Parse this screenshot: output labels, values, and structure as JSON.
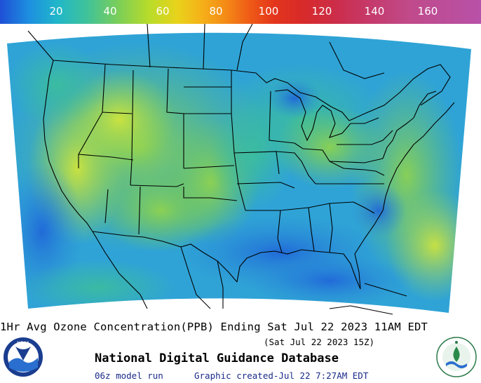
{
  "colorbar": {
    "ticks": [
      "20",
      "40",
      "60",
      "80",
      "100",
      "120",
      "140",
      "160"
    ],
    "colors": [
      "#1e4fd6",
      "#21b7c9",
      "#7fcf55",
      "#e9d21b",
      "#f48a16",
      "#e4351c",
      "#cc2d4a",
      "#b851a8"
    ]
  },
  "map": {
    "dominant_colors": [
      "#2fa6d8",
      "#3cbf9a",
      "#8cd34a",
      "#c8e23a",
      "#2370d6"
    ]
  },
  "caption": {
    "main": "1Hr Avg Ozone Concentration(PPB) Ending Sat Jul 22 2023 11AM EDT",
    "sub": "(Sat Jul 22 2023 15Z)",
    "title": "National Digital Guidance Database",
    "run": "06z model run",
    "created": "Graphic created-Jul 22  7:27AM EDT"
  },
  "logos": {
    "left": "noaa-logo",
    "left_text": "NOAA",
    "right": "epa-logo"
  }
}
